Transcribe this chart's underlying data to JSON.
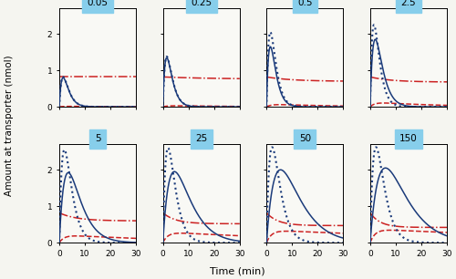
{
  "doses": [
    0.05,
    0.25,
    0.5,
    2.5,
    5,
    25,
    50,
    150
  ],
  "nrows": 2,
  "ncols": 4,
  "xlabel": "Time (min)",
  "ylabel": "Amount at transporter (nmol)",
  "title_bg": "#87CEEB",
  "xlim": [
    0,
    30
  ],
  "line_blue": "#1a3a7a",
  "line_red": "#cc2222",
  "bg_color": "#f5f5f0"
}
